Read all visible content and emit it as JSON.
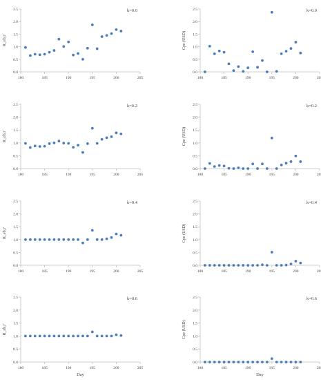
{
  "chart_data": [
    {
      "type": "scatter",
      "kval": "k=0.0",
      "ylabel": "R_eb,i'",
      "xlabel": "",
      "xlim": [
        180,
        205
      ],
      "ylim": [
        0,
        2.5
      ],
      "xticks": [
        "180",
        "185",
        "190",
        "195",
        "200",
        "205"
      ],
      "yticks": [
        "0.0",
        "0.5",
        "1.0",
        "1.5",
        "2.0",
        "2.5"
      ],
      "x": [
        181,
        182,
        183,
        184,
        185,
        186,
        187,
        188,
        189,
        190,
        191,
        192,
        193,
        194,
        195,
        196,
        197,
        198,
        199,
        200,
        201
      ],
      "y": [
        0.97,
        0.65,
        0.7,
        0.68,
        0.7,
        0.78,
        0.85,
        1.3,
        1.01,
        1.19,
        0.67,
        0.73,
        0.5,
        0.94,
        1.87,
        0.92,
        1.4,
        1.45,
        1.52,
        1.68,
        1.62
      ]
    },
    {
      "type": "scatter",
      "kval": "k=0.0",
      "ylabel": "Cpe (USD)",
      "xlabel": "",
      "xlim": [
        180,
        205
      ],
      "ylim": [
        0,
        2.5
      ],
      "xticks": [
        "180",
        "185",
        "190",
        "195",
        "200",
        "205"
      ],
      "yticks": [
        "0.0",
        "0.5",
        "1.0",
        "1.5",
        "2.0",
        "2.5"
      ],
      "x": [
        181,
        182,
        183,
        184,
        185,
        186,
        187,
        188,
        189,
        190,
        191,
        192,
        193,
        194,
        195,
        196,
        197,
        198,
        199,
        200,
        201
      ],
      "y": [
        0.0,
        1.02,
        0.72,
        0.83,
        0.78,
        0.32,
        0.05,
        0.21,
        0.02,
        0.16,
        0.8,
        0.18,
        0.45,
        0.0,
        2.37,
        0.02,
        0.72,
        0.82,
        0.93,
        1.18,
        0.75
      ]
    },
    {
      "type": "scatter",
      "kval": "k=0.2",
      "ylabel": "R_eb,i'",
      "xlabel": "",
      "xlim": [
        180,
        205
      ],
      "ylim": [
        0,
        2.5
      ],
      "xticks": [
        "180",
        "185",
        "190",
        "195",
        "200",
        "205"
      ],
      "yticks": [
        "0.0",
        "0.5",
        "1.0",
        "1.5",
        "2.0",
        "2.5"
      ],
      "x": [
        181,
        182,
        183,
        184,
        185,
        186,
        187,
        188,
        189,
        190,
        191,
        192,
        193,
        194,
        195,
        196,
        197,
        198,
        199,
        200,
        201
      ],
      "y": [
        0.98,
        0.82,
        0.88,
        0.86,
        0.87,
        0.97,
        1.0,
        1.07,
        0.99,
        0.98,
        0.83,
        0.91,
        0.63,
        0.97,
        1.57,
        0.98,
        1.14,
        1.2,
        1.24,
        1.39,
        1.35
      ]
    },
    {
      "type": "scatter",
      "kval": "k=0.2",
      "ylabel": "Cpe (USD)",
      "xlabel": "",
      "xlim": [
        180,
        205
      ],
      "ylim": [
        0,
        2.5
      ],
      "xticks": [
        "180",
        "185",
        "190",
        "195",
        "200",
        "205"
      ],
      "yticks": [
        "0.0",
        "0.5",
        "1.0",
        "1.5",
        "2.0",
        "2.5"
      ],
      "x": [
        181,
        182,
        183,
        184,
        185,
        186,
        187,
        188,
        189,
        190,
        191,
        192,
        193,
        194,
        195,
        196,
        197,
        198,
        199,
        200,
        201
      ],
      "y": [
        0.0,
        0.2,
        0.08,
        0.12,
        0.1,
        0.01,
        0.0,
        0.03,
        0.0,
        0.0,
        0.18,
        0.0,
        0.18,
        0.0,
        1.19,
        0.0,
        0.14,
        0.21,
        0.27,
        0.49,
        0.27
      ]
    },
    {
      "type": "scatter",
      "kval": "k=0.4",
      "ylabel": "R_eb,i'",
      "xlabel": "",
      "xlim": [
        180,
        205
      ],
      "ylim": [
        0,
        2.5
      ],
      "xticks": [
        "180",
        "185",
        "190",
        "195",
        "200",
        "205"
      ],
      "yticks": [
        "0.0",
        "0.5",
        "1.0",
        "1.5",
        "2.0",
        "2.5"
      ],
      "x": [
        181,
        182,
        183,
        184,
        185,
        186,
        187,
        188,
        189,
        190,
        191,
        192,
        193,
        194,
        195,
        196,
        197,
        198,
        199,
        200,
        201
      ],
      "y": [
        1.0,
        1.0,
        1.0,
        1.0,
        1.0,
        1.0,
        1.0,
        1.0,
        1.0,
        1.0,
        1.0,
        1.0,
        0.87,
        1.0,
        1.36,
        1.0,
        1.0,
        1.03,
        1.08,
        1.22,
        1.17
      ]
    },
    {
      "type": "scatter",
      "kval": "k=0.4",
      "ylabel": "Cpe (USD)",
      "xlabel": "",
      "xlim": [
        180,
        205
      ],
      "ylim": [
        0,
        2.5
      ],
      "xticks": [
        "180",
        "185",
        "190",
        "195",
        "200",
        "205"
      ],
      "yticks": [
        "0.0",
        "0.5",
        "1.0",
        "1.5",
        "2.0",
        "2.5"
      ],
      "x": [
        181,
        182,
        183,
        184,
        185,
        186,
        187,
        188,
        189,
        190,
        191,
        192,
        193,
        194,
        195,
        196,
        197,
        198,
        199,
        200,
        201
      ],
      "y": [
        0.0,
        0.0,
        0.0,
        0.0,
        0.0,
        0.0,
        0.0,
        0.0,
        0.0,
        0.0,
        0.0,
        0.0,
        0.02,
        0.0,
        0.51,
        0.0,
        0.0,
        0.01,
        0.05,
        0.16,
        0.09
      ]
    },
    {
      "type": "scatter",
      "kval": "k=0.6",
      "ylabel": "R_eb,i'",
      "xlabel": "Day",
      "xlim": [
        180,
        205
      ],
      "ylim": [
        0,
        2.5
      ],
      "xticks": [
        "180",
        "185",
        "190",
        "195",
        "200",
        "205"
      ],
      "yticks": [
        "0.0",
        "0.5",
        "1.0",
        "1.5",
        "2.0",
        "2.5"
      ],
      "x": [
        181,
        182,
        183,
        184,
        185,
        186,
        187,
        188,
        189,
        190,
        191,
        192,
        193,
        194,
        195,
        196,
        197,
        198,
        199,
        200,
        201
      ],
      "y": [
        1.0,
        1.0,
        1.0,
        1.0,
        1.0,
        1.0,
        1.0,
        1.0,
        1.0,
        1.0,
        1.0,
        1.0,
        1.0,
        1.0,
        1.16,
        1.0,
        1.0,
        1.0,
        1.0,
        1.05,
        1.02
      ]
    },
    {
      "type": "scatter",
      "kval": "k=0.6",
      "ylabel": "Cpe (USD)",
      "xlabel": "Day",
      "xlim": [
        180,
        205
      ],
      "ylim": [
        0,
        2.5
      ],
      "xticks": [
        "180",
        "185",
        "190",
        "195",
        "200",
        "205"
      ],
      "yticks": [
        "0.0",
        "0.5",
        "1.0",
        "1.5",
        "2.0",
        "2.5"
      ],
      "x": [
        181,
        182,
        183,
        184,
        185,
        186,
        187,
        188,
        189,
        190,
        191,
        192,
        193,
        194,
        195,
        196,
        197,
        198,
        199,
        200,
        201
      ],
      "y": [
        0.0,
        0.0,
        0.0,
        0.0,
        0.0,
        0.0,
        0.0,
        0.0,
        0.0,
        0.0,
        0.0,
        0.0,
        0.0,
        0.0,
        0.13,
        0.0,
        0.0,
        0.0,
        0.0,
        0.0,
        0.0
      ]
    }
  ],
  "colors": {
    "marker": "#4a7ebb",
    "axis": "#bfbfbf",
    "text": "#444444"
  }
}
